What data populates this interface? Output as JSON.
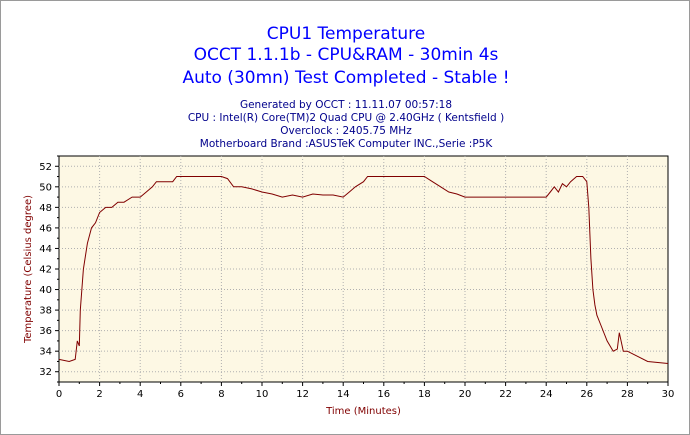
{
  "header": {
    "titles": [
      "CPU1 Temperature",
      "OCCT 1.1.1b - CPU&RAM - 30min 4s",
      "Auto (30mn) Test Completed - Stable !"
    ],
    "info": [
      "Generated by OCCT : 11.11.07 00:57:18",
      "CPU : Intel(R) Core(TM)2 Quad CPU @ 2.40GHz ( Kentsfield )",
      "Overclock : 2405.75 MHz",
      "Motherboard Brand :ASUSTeK Computer INC.,Serie :P5K"
    ]
  },
  "colors": {
    "title": "#0000ff",
    "info": "#00008b",
    "line": "#800000",
    "plot_bg": "#fdf8e4",
    "grid": "#b0b0b0",
    "axis_label": "#800000"
  },
  "chart_data": {
    "type": "line",
    "xlabel": "Time (Minutes)",
    "ylabel": "Temperature (Celsius degree)",
    "xlim": [
      0,
      30
    ],
    "ylim": [
      31,
      53
    ],
    "xticks": [
      "0",
      "2",
      "4",
      "6",
      "8",
      "10",
      "12",
      "14",
      "16",
      "18",
      "20",
      "22",
      "24",
      "26",
      "28",
      "30"
    ],
    "yticks": [
      "32",
      "34",
      "36",
      "38",
      "40",
      "42",
      "44",
      "46",
      "48",
      "50",
      "52"
    ],
    "grid": true,
    "series": [
      {
        "x": [
          0,
          0.5,
          0.8,
          0.9,
          1.0,
          1.05,
          1.2,
          1.4,
          1.6,
          1.8,
          2.0,
          2.3,
          2.6,
          2.9,
          3.2,
          3.6,
          4.0,
          4.3,
          4.6,
          4.8,
          5.2,
          5.6,
          5.8,
          6.5,
          7.5,
          8.0,
          8.3,
          8.6,
          9.0,
          9.5,
          10.0,
          10.5,
          11.0,
          11.5,
          12.0,
          12.5,
          13.0,
          13.5,
          14.0,
          14.3,
          14.6,
          15.0,
          15.2,
          16.0,
          17.0,
          18.0,
          18.4,
          18.8,
          19.2,
          19.6,
          20.0,
          21.0,
          22.0,
          23.0,
          24.0,
          24.2,
          24.4,
          24.6,
          24.8,
          25.0,
          25.2,
          25.5,
          25.8,
          26.0,
          26.1,
          26.2,
          26.3,
          26.4,
          26.5,
          26.7,
          27.0,
          27.3,
          27.5,
          27.6,
          27.8,
          28.0,
          28.5,
          29.0,
          30.0
        ],
        "y": [
          33.2,
          33.0,
          33.2,
          35.0,
          34.5,
          38.0,
          42.0,
          44.5,
          46.0,
          46.5,
          47.5,
          48.0,
          48.0,
          48.5,
          48.5,
          49.0,
          49.0,
          49.5,
          50.0,
          50.5,
          50.5,
          50.5,
          51.0,
          51.0,
          51.0,
          51.0,
          50.8,
          50.0,
          50.0,
          49.8,
          49.5,
          49.3,
          49.0,
          49.2,
          49.0,
          49.3,
          49.2,
          49.2,
          49.0,
          49.5,
          50.0,
          50.5,
          51.0,
          51.0,
          51.0,
          51.0,
          50.5,
          50.0,
          49.5,
          49.3,
          49.0,
          49.0,
          49.0,
          49.0,
          49.0,
          49.5,
          50.0,
          49.5,
          50.3,
          50.0,
          50.5,
          51.0,
          51.0,
          50.5,
          48.0,
          43.0,
          40.0,
          38.5,
          37.5,
          36.5,
          35.0,
          34.0,
          34.2,
          35.8,
          34.0,
          34.0,
          33.5,
          33.0,
          32.8
        ]
      }
    ]
  }
}
